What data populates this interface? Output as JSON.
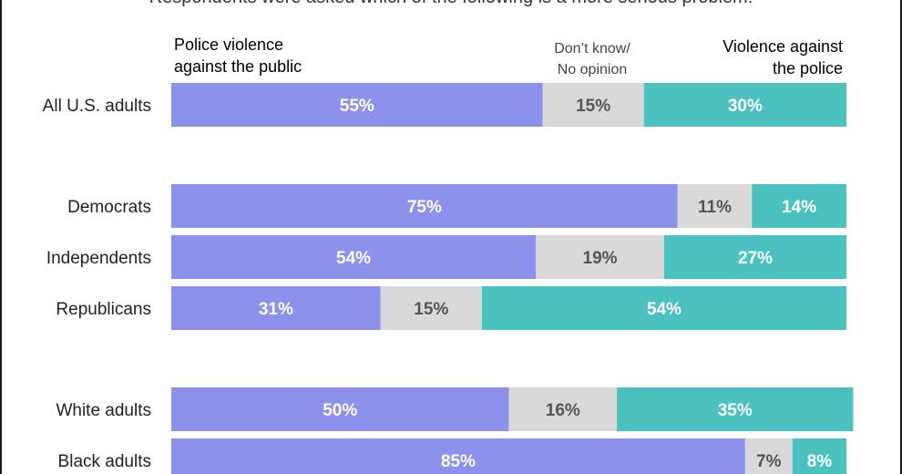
{
  "chart_data": {
    "type": "bar",
    "orientation": "horizontal",
    "stacked": true,
    "subtitle": "Respondents were asked which of the following is a more serious problem:",
    "series": [
      {
        "name": "Police violence against the public",
        "name_lines": [
          "Police violence",
          "against the public"
        ],
        "color": "#8c91ec",
        "values": [
          55,
          75,
          54,
          31,
          50,
          85
        ]
      },
      {
        "name": "Don’t know/ No opinion",
        "name_lines": [
          "Don’t know/",
          "No opinion"
        ],
        "color": "#d9d9d9",
        "values": [
          15,
          11,
          19,
          15,
          16,
          7
        ]
      },
      {
        "name": "Violence against the police",
        "name_lines": [
          "Violence against",
          "the police"
        ],
        "color": "#4bc2bf",
        "values": [
          30,
          14,
          27,
          54,
          35,
          8
        ]
      }
    ],
    "categories": [
      "All U.S. adults",
      "Democrats",
      "Independents",
      "Republicans",
      "White adults",
      "Black adults"
    ],
    "value_suffix": "%",
    "label_colors": [
      "#ffffff",
      "#555555",
      "#ffffff"
    ],
    "xlim": [
      0,
      100
    ],
    "legend": "top",
    "grid": false
  }
}
